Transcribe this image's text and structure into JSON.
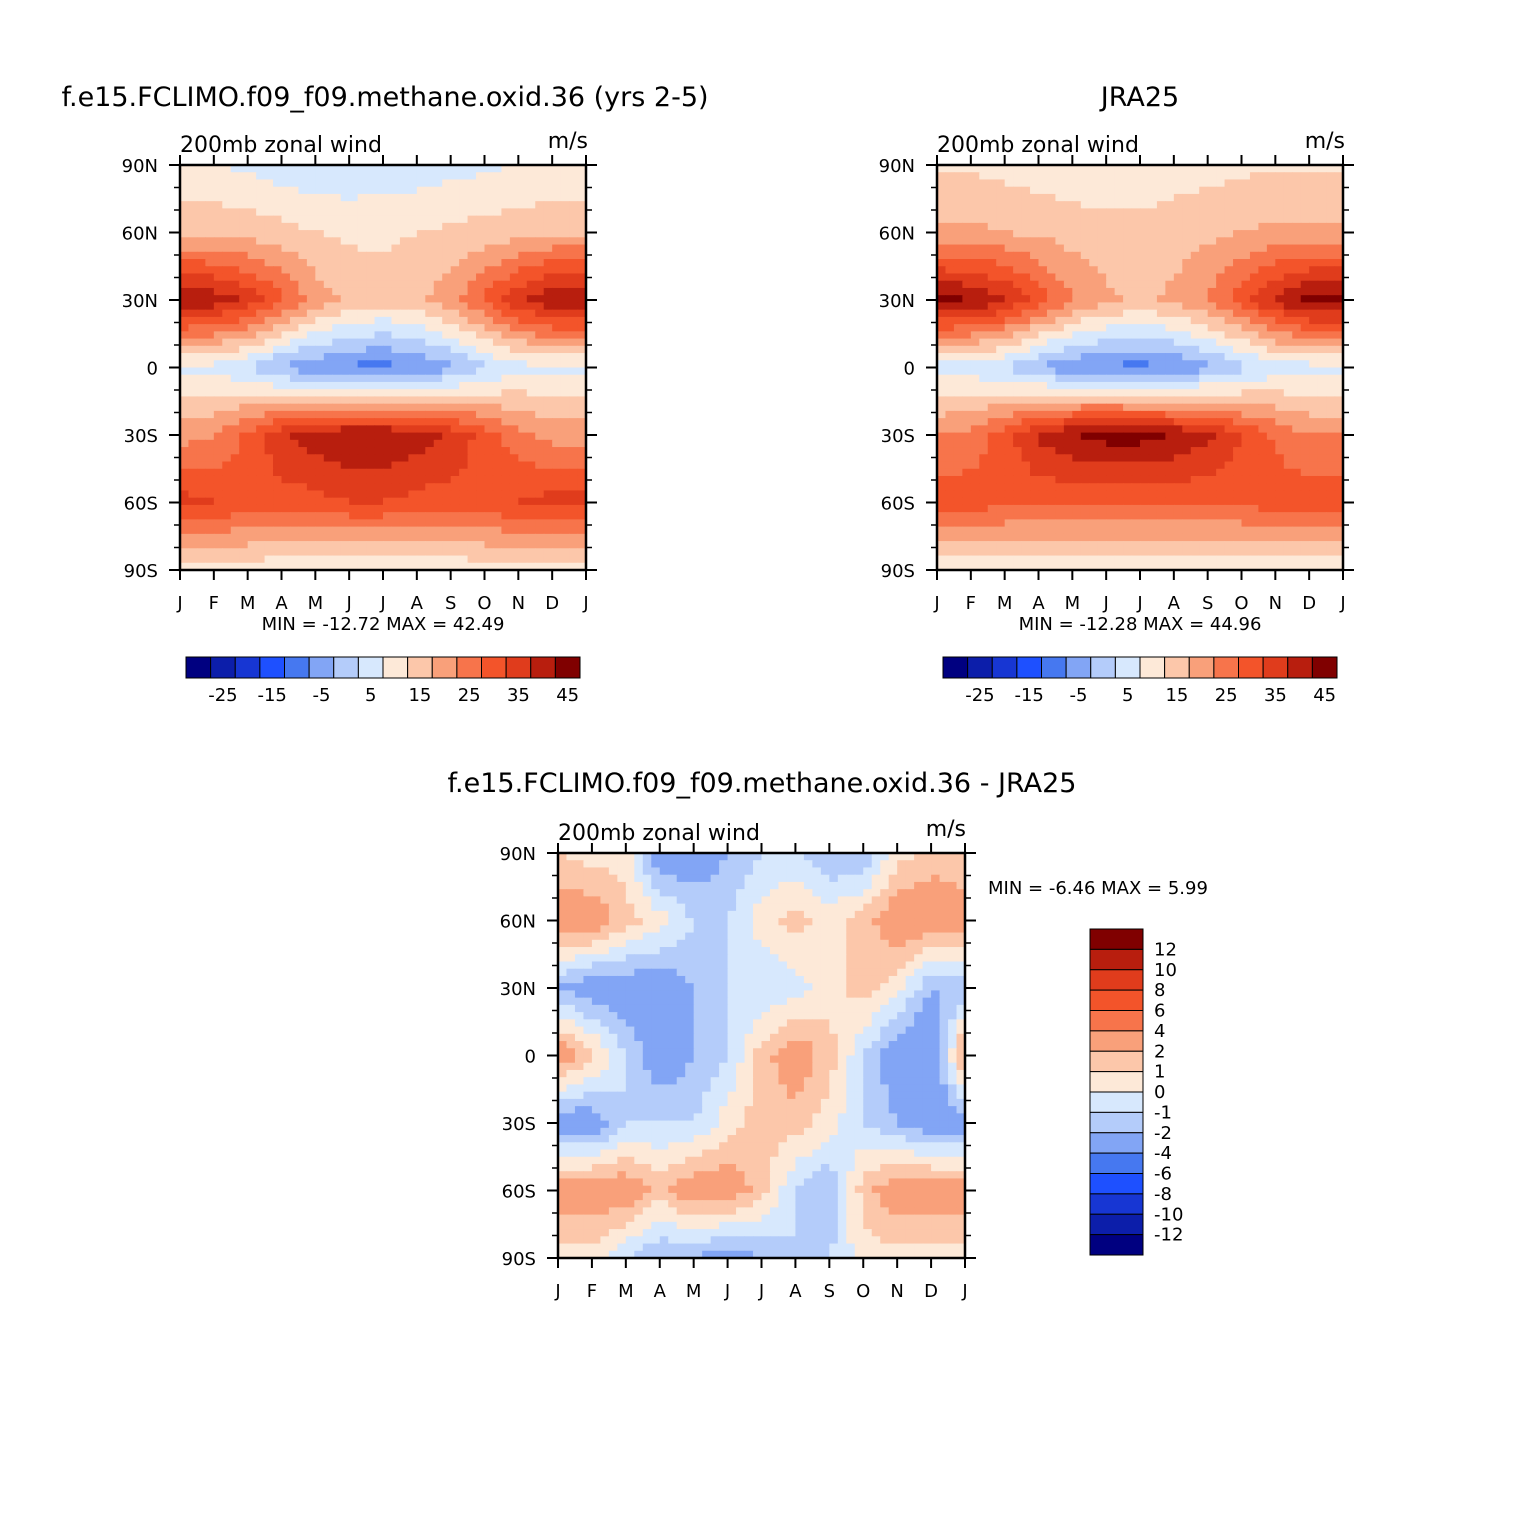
{
  "panels": [
    {
      "id": "model",
      "title": "f.e15.FCLIMO.f09_f09.methane.oxid.36 (yrs 2-5)",
      "left_label": "200mb zonal wind",
      "right_label": "m/s",
      "stats": "MIN = -12.72 MAX = 42.49"
    },
    {
      "id": "obs",
      "title": "JRA25",
      "left_label": "200mb zonal wind",
      "right_label": "m/s",
      "stats": "MIN = -12.28 MAX = 44.96"
    },
    {
      "id": "diff",
      "title": "f.e15.FCLIMO.f09_f09.methane.oxid.36 - JRA25",
      "left_label": "200mb zonal wind",
      "right_label": "m/s",
      "stats": "MIN = -6.46 MAX = 5.99"
    }
  ],
  "axes": {
    "x_ticks": [
      "J",
      "F",
      "M",
      "A",
      "M",
      "J",
      "J",
      "A",
      "S",
      "O",
      "N",
      "D",
      "J"
    ],
    "y_ticks": [
      "90N",
      "60N",
      "30N",
      "0",
      "30S",
      "60S",
      "90S"
    ]
  },
  "colorbars": {
    "main": {
      "colors": [
        "#000080",
        "#0c1eaa",
        "#1736d3",
        "#1e50ff",
        "#4678f0",
        "#82a5f5",
        "#b4ccfa",
        "#d7e8fd",
        "#fde9d8",
        "#fcc7aa",
        "#f9a07a",
        "#f7744b",
        "#f3542a",
        "#e03c1c",
        "#b81e0e",
        "#800000"
      ],
      "labels": [
        "-25",
        "-15",
        "-5",
        "5",
        "15",
        "25",
        "35",
        "45"
      ]
    },
    "diff": {
      "colors": [
        "#800000",
        "#b81e0e",
        "#e03c1c",
        "#f3542a",
        "#f7744b",
        "#f9a07a",
        "#fcc7aa",
        "#fde9d8",
        "#d7e8fd",
        "#b4ccfa",
        "#82a5f5",
        "#4678f0",
        "#1e50ff",
        "#1736d3",
        "#0c1eaa",
        "#000080"
      ],
      "labels": [
        "12",
        "10",
        "8",
        "6",
        "4",
        "2",
        "1",
        "0",
        "-1",
        "-2",
        "-4",
        "-6",
        "-8",
        "-10",
        "-12"
      ]
    }
  },
  "chart_data": [
    {
      "type": "heatmap",
      "title": "f.e15.FCLIMO.f09_f09.methane.oxid.36 (yrs 2-5)",
      "xlabel": "200mb zonal wind",
      "units": "m/s",
      "x": [
        "J",
        "F",
        "M",
        "A",
        "M",
        "J",
        "J",
        "A",
        "S",
        "O",
        "N",
        "D",
        "J"
      ],
      "y": [
        "90N",
        "60N",
        "30N",
        "0",
        "30S",
        "60S",
        "90S"
      ],
      "min": -12.72,
      "max": 42.49,
      "values": [
        [
          5,
          5,
          4,
          2,
          1,
          1,
          2,
          2,
          3,
          4,
          5,
          5,
          5
        ],
        [
          14,
          14,
          13,
          12,
          10,
          9,
          9,
          10,
          11,
          12,
          13,
          14,
          14
        ],
        [
          40,
          38,
          34,
          26,
          18,
          14,
          12,
          14,
          18,
          26,
          34,
          40,
          40
        ],
        [
          4,
          3,
          0,
          -6,
          -9,
          -11,
          -12,
          -10,
          -6,
          -1,
          3,
          4,
          4
        ],
        [
          18,
          20,
          26,
          34,
          38,
          40,
          40,
          38,
          34,
          28,
          22,
          18,
          18
        ],
        [
          32,
          30,
          28,
          28,
          28,
          30,
          30,
          28,
          28,
          28,
          30,
          32,
          32
        ],
        [
          8,
          8,
          7,
          6,
          5,
          5,
          5,
          5,
          6,
          7,
          8,
          8,
          8
        ]
      ]
    },
    {
      "type": "heatmap",
      "title": "JRA25",
      "xlabel": "200mb zonal wind",
      "units": "m/s",
      "x": [
        "J",
        "F",
        "M",
        "A",
        "M",
        "J",
        "J",
        "A",
        "S",
        "O",
        "N",
        "D",
        "J"
      ],
      "y": [
        "90N",
        "60N",
        "30N",
        "0",
        "30S",
        "60S",
        "90S"
      ],
      "min": -12.28,
      "max": 44.96,
      "values": [
        [
          9,
          9,
          8,
          7,
          6,
          6,
          6,
          7,
          8,
          9,
          9,
          9,
          9
        ],
        [
          16,
          16,
          15,
          14,
          13,
          12,
          12,
          13,
          14,
          15,
          16,
          16,
          16
        ],
        [
          42,
          40,
          36,
          28,
          20,
          16,
          14,
          16,
          20,
          28,
          36,
          42,
          42
        ],
        [
          3,
          2,
          -1,
          -6,
          -9,
          -11,
          -12,
          -10,
          -6,
          -2,
          2,
          3,
          3
        ],
        [
          20,
          22,
          28,
          36,
          40,
          42,
          42,
          40,
          36,
          30,
          24,
          20,
          20
        ],
        [
          28,
          28,
          26,
          26,
          26,
          26,
          26,
          26,
          26,
          26,
          28,
          28,
          28
        ],
        [
          6,
          6,
          6,
          5,
          5,
          5,
          5,
          5,
          5,
          6,
          6,
          6,
          6
        ]
      ]
    },
    {
      "type": "heatmap",
      "title": "f.e15.FCLIMO.f09_f09.methane.oxid.36 - JRA25",
      "xlabel": "200mb zonal wind",
      "units": "m/s",
      "x": [
        "J",
        "F",
        "M",
        "A",
        "M",
        "J",
        "J",
        "A",
        "S",
        "O",
        "N",
        "D",
        "J"
      ],
      "y": [
        "90N",
        "60N",
        "30N",
        "0",
        "30S",
        "60S",
        "90S"
      ],
      "min": -6.46,
      "max": 5.99,
      "values": [
        [
          1,
          0.5,
          0.5,
          -3,
          -3,
          -2,
          -1,
          -1,
          -2,
          -2,
          0.5,
          1.5,
          1
        ],
        [
          3,
          3,
          1.5,
          0.5,
          -1,
          -1,
          0.5,
          1.5,
          0.5,
          1.5,
          3,
          3,
          3
        ],
        [
          -2,
          -3,
          -3,
          -3,
          -2,
          -1,
          -1,
          -0.5,
          0.5,
          1.5,
          0.5,
          -2,
          -2
        ],
        [
          3,
          1.5,
          -1,
          -3,
          -2,
          -1,
          1.5,
          3,
          1.5,
          -1,
          -3,
          -4,
          3
        ],
        [
          -3,
          -3,
          -1,
          -1,
          -1,
          0.5,
          1.5,
          1.5,
          0.5,
          -1,
          -2,
          -3,
          -3
        ],
        [
          3,
          3,
          3,
          1.5,
          3,
          3,
          1.5,
          -1,
          -2,
          1.5,
          3,
          3,
          3
        ],
        [
          0.5,
          0.5,
          -1,
          -2,
          -2,
          -3,
          -2,
          -1,
          -1,
          0.5,
          0.5,
          0.5,
          0.5
        ]
      ]
    }
  ]
}
